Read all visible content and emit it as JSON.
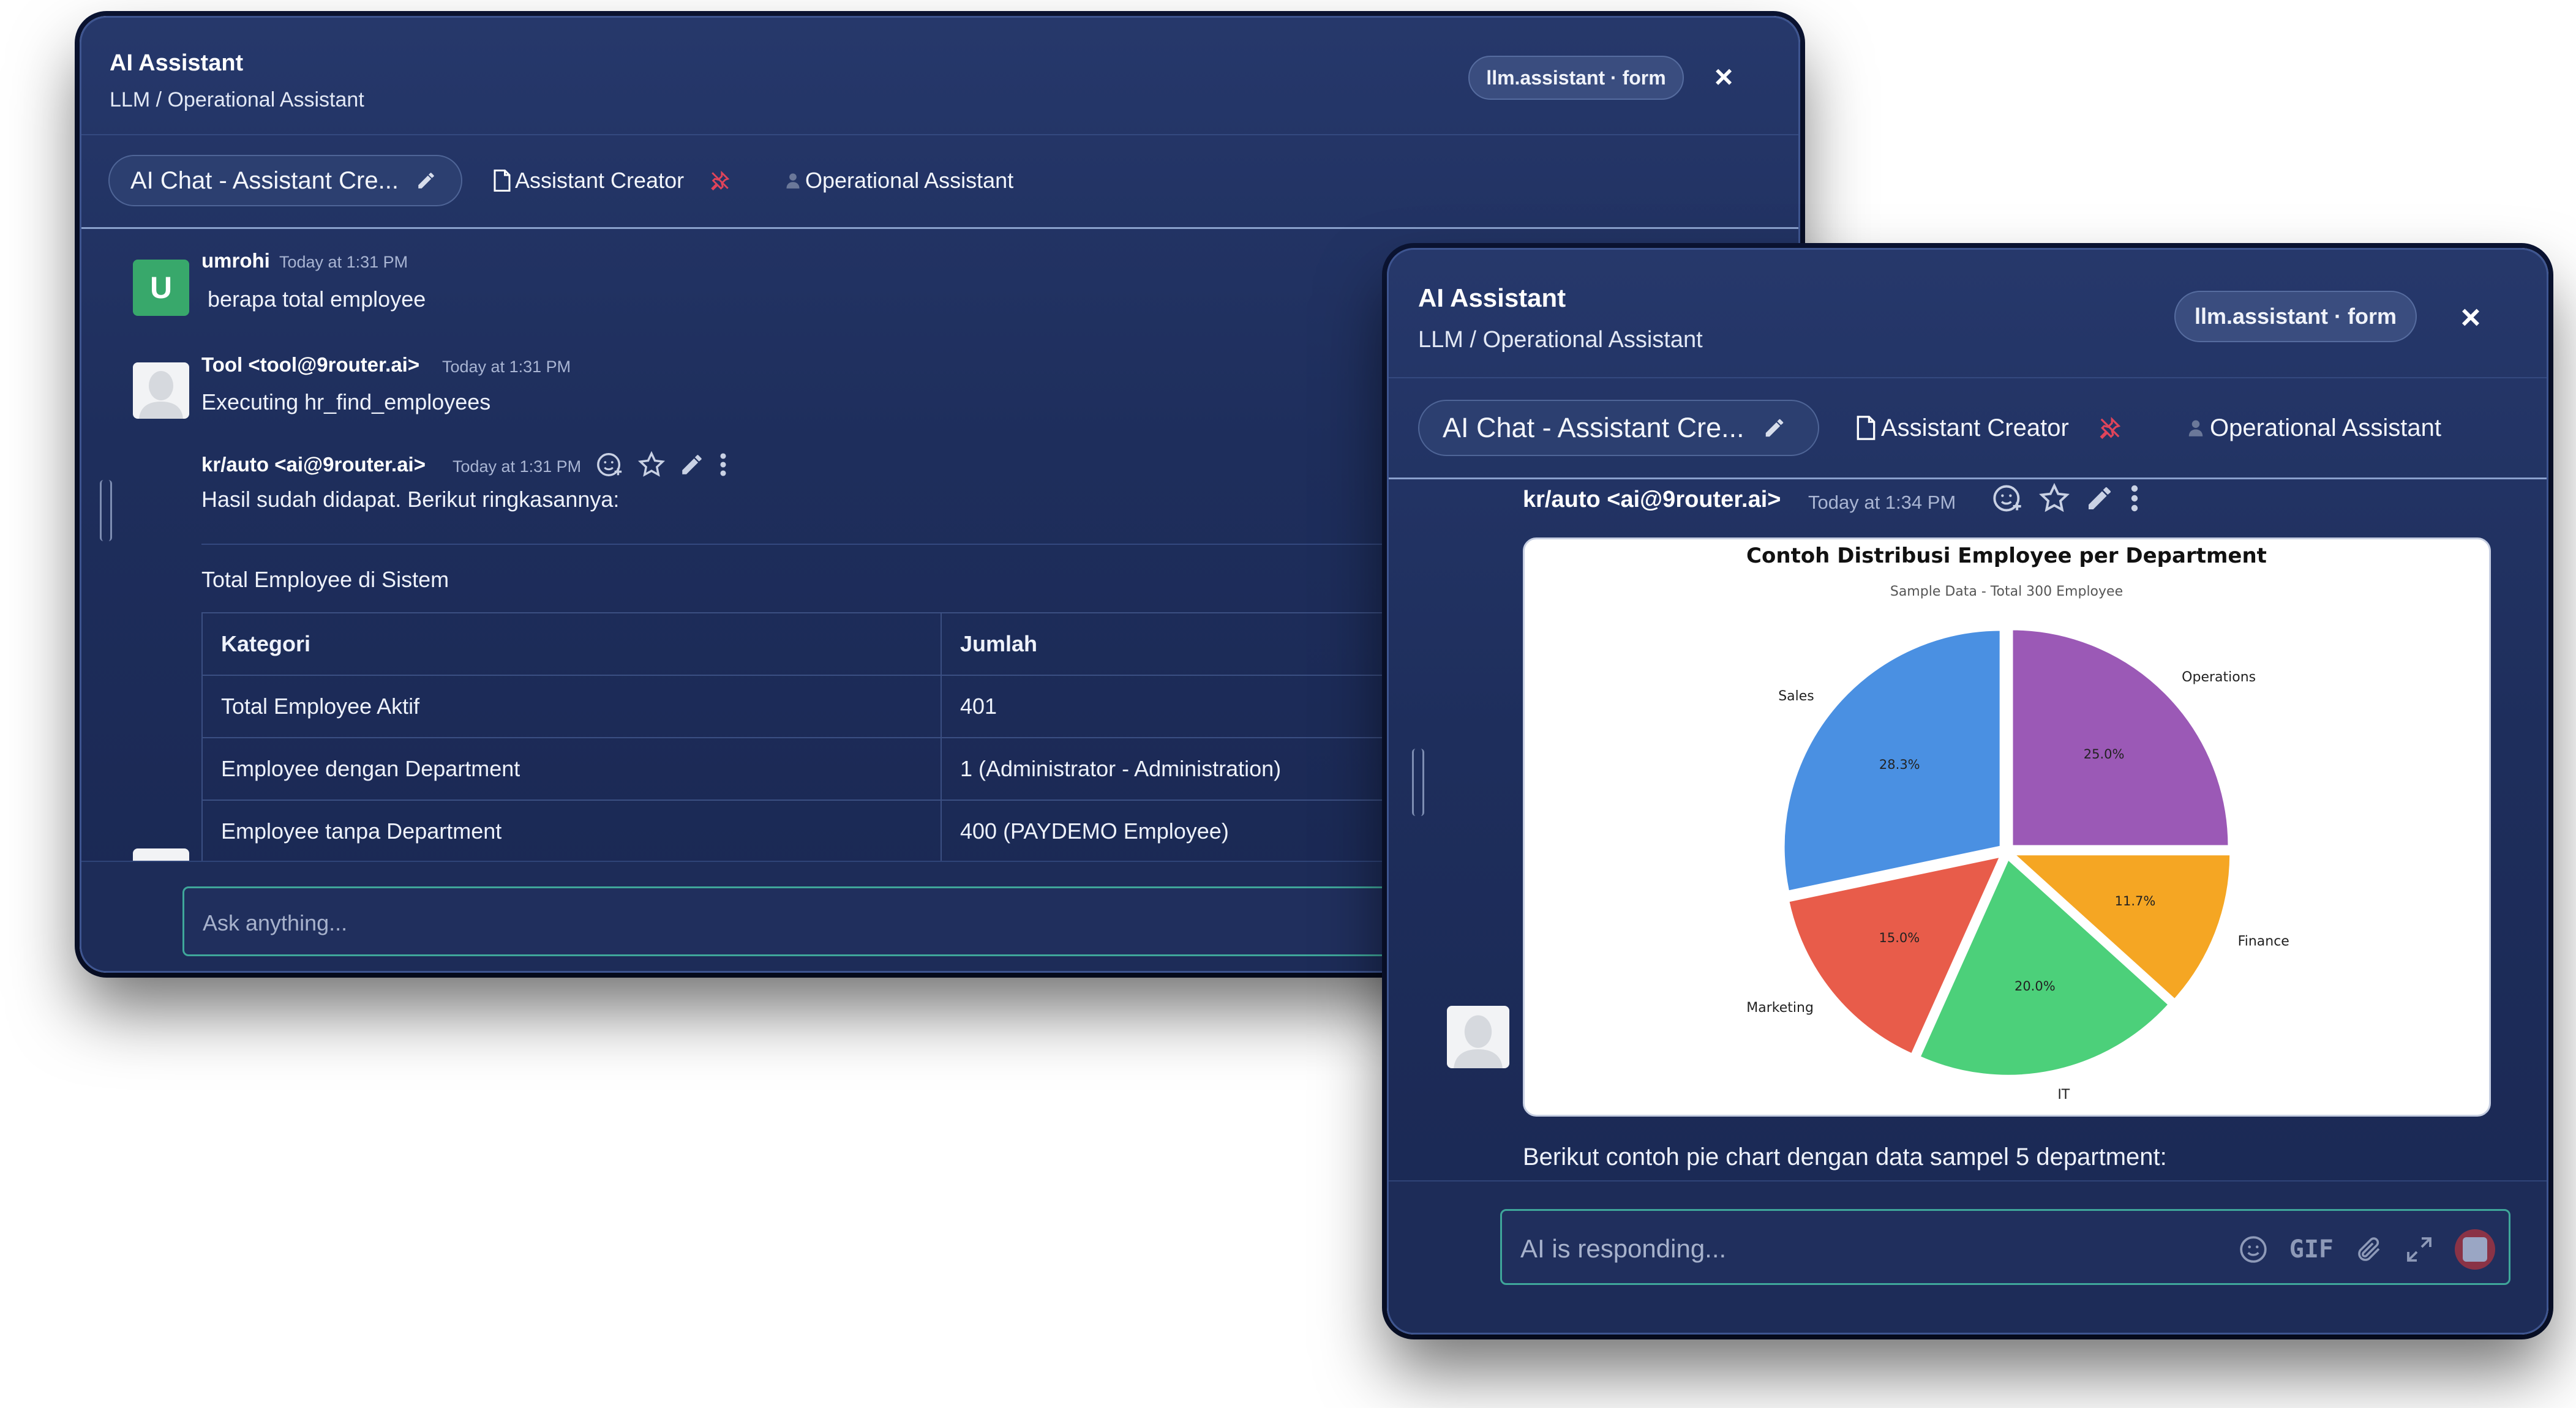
{
  "colors": {
    "accent": "#3fa79a",
    "window_bg": "#1e2e5c",
    "avatar_u": "#38a86b",
    "pin": "#e0445a"
  },
  "window1": {
    "title": "AI Assistant",
    "subtitle": "LLM / Operational Assistant",
    "badge": "llm.assistant · form",
    "close": "×",
    "tabs": {
      "chat": "AI Chat - Assistant Cre...",
      "creator": "Assistant Creator",
      "operational": "Operational Assistant"
    },
    "messages": [
      {
        "avatar": "U",
        "name": "umrohi",
        "time": "Today at 1:31 PM",
        "text": "berapa total employee"
      },
      {
        "name": "Tool <tool@9router.ai>",
        "time": "Today at 1:31 PM",
        "text": "Executing hr_find_employees"
      },
      {
        "name": "kr/auto <ai@9router.ai>",
        "time": "Today at 1:31 PM",
        "text": "Hasil sudah didapat. Berikut ringkasannya:"
      }
    ],
    "section_title": "Total Employee di Sistem",
    "table": {
      "headers": [
        "Kategori",
        "Jumlah"
      ],
      "rows": [
        [
          "Total Employee Aktif",
          "401"
        ],
        [
          "Employee dengan Department",
          "1 (Administrator - Administration)"
        ],
        [
          "Employee tanpa Department",
          "400 (PAYDEMO Employee)"
        ]
      ]
    },
    "input_placeholder": "Ask anything..."
  },
  "window2": {
    "title": "AI Assistant",
    "subtitle": "LLM / Operational Assistant",
    "badge": "llm.assistant · form",
    "close": "×",
    "tabs": {
      "chat": "AI Chat - Assistant Cre...",
      "creator": "Assistant Creator",
      "operational": "Operational Assistant"
    },
    "message": {
      "name": "kr/auto <ai@9router.ai>",
      "time": "Today at 1:34 PM",
      "text": "Berikut contoh pie chart dengan data sampel 5 department:"
    },
    "input_placeholder": "AI is responding...",
    "gif_label": "GIF"
  },
  "chart_data": {
    "type": "pie",
    "title": "Contoh Distribusi Employee per Department",
    "subtitle": "Sample Data - Total 300 Employee",
    "slices": [
      {
        "label": "Operations",
        "value": 25.0,
        "pct_label": "25.0%",
        "color": "#9b59b6"
      },
      {
        "label": "Finance",
        "value": 11.7,
        "pct_label": "11.7%",
        "color": "#f5a623"
      },
      {
        "label": "IT",
        "value": 20.0,
        "pct_label": "20.0%",
        "color": "#4cd07a"
      },
      {
        "label": "Marketing",
        "value": 15.0,
        "pct_label": "15.0%",
        "color": "#e85c4a"
      },
      {
        "label": "Sales",
        "value": 28.3,
        "pct_label": "28.3%",
        "color": "#4a90e2"
      }
    ],
    "legend": "none"
  }
}
